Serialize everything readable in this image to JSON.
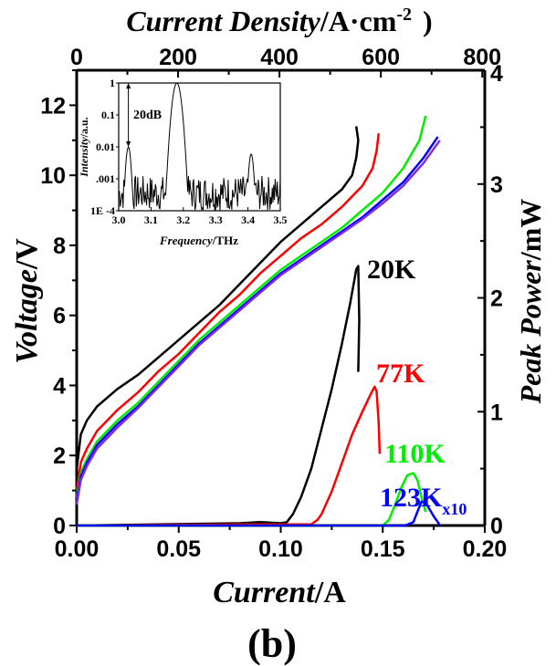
{
  "chart_data": {
    "type": "line",
    "panel_label": "(b)",
    "xlabel": {
      "italic": "Current",
      "normal": "/A"
    },
    "x2label": {
      "italic": "Current Density",
      "normal": "/A·cm",
      "sup": "-2",
      "tail": ")"
    },
    "ylabel": {
      "italic": "Voltage",
      "normal": "/V"
    },
    "y2label": {
      "italic": "Peak Power",
      "normal": "/mW"
    },
    "xlim": [
      0,
      0.2
    ],
    "x2lim": [
      0,
      805
    ],
    "ylim": [
      0,
      13
    ],
    "y2lim": [
      0,
      4
    ],
    "x_ticks": [
      "0.00",
      "0.05",
      "0.10",
      "0.15",
      "0.20"
    ],
    "x_tick_values": [
      0,
      0.05,
      0.1,
      0.15,
      0.2
    ],
    "x2_ticks": [
      "0",
      "200",
      "400",
      "600",
      "800"
    ],
    "x2_tick_values": [
      0,
      200,
      400,
      600,
      800
    ],
    "y_ticks": [
      "0",
      "2",
      "4",
      "6",
      "8",
      "10",
      "12"
    ],
    "y_tick_values": [
      0,
      2,
      4,
      6,
      8,
      10,
      12
    ],
    "y2_ticks": [
      "0",
      "1",
      "2",
      "3",
      "4"
    ],
    "y2_tick_values": [
      0,
      1,
      2,
      3,
      4
    ],
    "voltage_series": [
      {
        "name": "20K V-I",
        "color": "#000000",
        "x": [
          0,
          0.002,
          0.005,
          0.01,
          0.02,
          0.03,
          0.04,
          0.05,
          0.06,
          0.07,
          0.08,
          0.09,
          0.1,
          0.11,
          0.12,
          0.13,
          0.135,
          0.137,
          0.138,
          0.137
        ],
        "y": [
          1.6,
          2.6,
          3.0,
          3.4,
          3.9,
          4.3,
          4.8,
          5.3,
          5.8,
          6.3,
          6.9,
          7.5,
          8.1,
          8.6,
          9.1,
          9.6,
          10.0,
          10.5,
          11.0,
          11.4
        ]
      },
      {
        "name": "77K V-I",
        "color": "#ff0000",
        "x": [
          0,
          0.002,
          0.005,
          0.01,
          0.02,
          0.03,
          0.04,
          0.05,
          0.06,
          0.07,
          0.08,
          0.09,
          0.1,
          0.11,
          0.12,
          0.13,
          0.14,
          0.145,
          0.147,
          0.148
        ],
        "y": [
          1.0,
          1.8,
          2.2,
          2.7,
          3.3,
          3.8,
          4.4,
          4.9,
          5.5,
          6.1,
          6.6,
          7.2,
          7.7,
          8.2,
          8.6,
          9.1,
          9.7,
          10.2,
          10.7,
          11.2
        ]
      },
      {
        "name": "110K V-I",
        "color": "#00ee00",
        "x": [
          0,
          0.002,
          0.005,
          0.01,
          0.02,
          0.03,
          0.04,
          0.05,
          0.06,
          0.07,
          0.08,
          0.09,
          0.1,
          0.11,
          0.12,
          0.13,
          0.14,
          0.15,
          0.16,
          0.168,
          0.171
        ],
        "y": [
          0.8,
          1.5,
          1.9,
          2.4,
          3.0,
          3.5,
          4.1,
          4.7,
          5.3,
          5.8,
          6.3,
          6.8,
          7.3,
          7.7,
          8.1,
          8.5,
          9.0,
          9.5,
          10.2,
          11.0,
          11.7
        ]
      },
      {
        "name": "123K V-I",
        "color": "#0000ff",
        "x": [
          0,
          0.002,
          0.005,
          0.01,
          0.02,
          0.03,
          0.04,
          0.05,
          0.06,
          0.07,
          0.08,
          0.09,
          0.1,
          0.11,
          0.12,
          0.13,
          0.14,
          0.15,
          0.16,
          0.17,
          0.177
        ],
        "y": [
          0.7,
          1.4,
          1.8,
          2.3,
          2.9,
          3.4,
          4.0,
          4.6,
          5.2,
          5.7,
          6.2,
          6.7,
          7.2,
          7.6,
          8.0,
          8.4,
          8.8,
          9.3,
          9.8,
          10.5,
          11.1
        ]
      },
      {
        "name": "Additional V-I",
        "color": "#7f2be0",
        "x": [
          0,
          0.002,
          0.005,
          0.01,
          0.02,
          0.03,
          0.04,
          0.05,
          0.06,
          0.07,
          0.08,
          0.09,
          0.1,
          0.11,
          0.12,
          0.13,
          0.14,
          0.15,
          0.16,
          0.17,
          0.178
        ],
        "y": [
          0.6,
          1.3,
          1.7,
          2.2,
          2.8,
          3.35,
          3.95,
          4.55,
          5.15,
          5.65,
          6.15,
          6.65,
          7.15,
          7.55,
          7.95,
          8.35,
          8.75,
          9.2,
          9.7,
          10.35,
          11.0
        ]
      }
    ],
    "power_series": [
      {
        "name": "20K",
        "label": "20K",
        "label_sub": "",
        "color": "#000000",
        "x": [
          0,
          0.08,
          0.09,
          0.1,
          0.103,
          0.106,
          0.11,
          0.115,
          0.12,
          0.125,
          0.13,
          0.134,
          0.136,
          0.137,
          0.138,
          0.1385,
          0.138
        ],
        "y": [
          0,
          0.02,
          0.03,
          0.02,
          0.03,
          0.1,
          0.25,
          0.5,
          0.85,
          1.2,
          1.6,
          1.95,
          2.15,
          2.25,
          2.28,
          1.8,
          1.35
        ]
      },
      {
        "name": "77K",
        "label": "77K",
        "label_sub": "",
        "color": "#ff0000",
        "x": [
          0,
          0.08,
          0.1,
          0.115,
          0.118,
          0.12,
          0.125,
          0.13,
          0.135,
          0.14,
          0.144,
          0.146,
          0.147,
          0.148,
          0.1485
        ],
        "y": [
          0,
          0.01,
          0.01,
          0.01,
          0.05,
          0.1,
          0.3,
          0.55,
          0.8,
          1.0,
          1.15,
          1.22,
          1.18,
          0.9,
          0.63
        ]
      },
      {
        "name": "110K",
        "label": "110K",
        "label_sub": "",
        "color": "#00ee00",
        "x": [
          0,
          0.15,
          0.153,
          0.156,
          0.159,
          0.162,
          0.165,
          0.167,
          0.169,
          0.171
        ],
        "y": [
          0,
          0.0,
          0.05,
          0.18,
          0.33,
          0.44,
          0.46,
          0.4,
          0.25,
          0.12
        ]
      },
      {
        "name": "123K",
        "label": "123K",
        "label_sub": "x10",
        "color": "#0000ff",
        "x": [
          0,
          0.161,
          0.165,
          0.167,
          0.169,
          0.171,
          0.173,
          0.175,
          0.177,
          0.178
        ],
        "y": [
          0,
          0.0,
          0.03,
          0.12,
          0.21,
          0.2,
          0.14,
          0.08,
          0.03,
          0.0
        ]
      }
    ],
    "inset": {
      "type": "line",
      "xlabel": {
        "italic": "Frequency",
        "normal": "/THz"
      },
      "ylabel": {
        "italic": "Intensity",
        "normal": "/a.u."
      },
      "xlim": [
        3.0,
        3.5
      ],
      "ylim_log": [
        0.0001,
        1
      ],
      "x_ticks": [
        "3.0",
        "3.1",
        "3.2",
        "3.3",
        "3.4",
        "3.5"
      ],
      "x_tick_values": [
        3.0,
        3.1,
        3.2,
        3.3,
        3.4,
        3.5
      ],
      "y_ticks": [
        "1E -4",
        ".001",
        "0.01",
        "0.1",
        "1"
      ],
      "y_tick_values": [
        0.0001,
        0.001,
        0.01,
        0.1,
        1
      ],
      "annotation": "20dB",
      "annotation_arrow": {
        "x": 3.03,
        "y_from": 0.01,
        "y_to": 1
      },
      "peaks": [
        {
          "x": 3.03,
          "y": 0.01
        },
        {
          "x": 3.18,
          "y": 1
        },
        {
          "x": 3.41,
          "y": 0.006
        }
      ]
    }
  }
}
